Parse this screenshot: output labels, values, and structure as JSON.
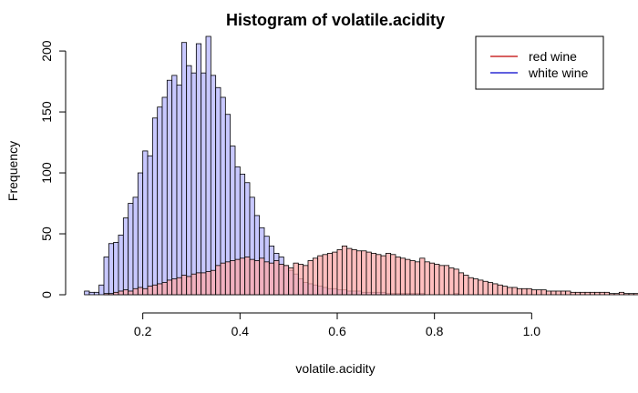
{
  "chart_data": {
    "type": "bar",
    "title": "Histogram of volatile.acidity",
    "xlabel": "volatile.acidity",
    "ylabel": "Frequency",
    "xlim": [
      0.06,
      1.14
    ],
    "ylim": [
      0,
      212
    ],
    "x_ticks": [
      0.2,
      0.4,
      0.6,
      0.8,
      1.0
    ],
    "x_tick_labels": [
      "0.2",
      "0.4",
      "0.6",
      "0.8",
      "1.0"
    ],
    "y_ticks": [
      0,
      50,
      100,
      150,
      200
    ],
    "y_tick_labels": [
      "0",
      "50",
      "100",
      "150",
      "200"
    ],
    "bin_width": 0.01,
    "legend": {
      "position": "top-right",
      "entries": [
        {
          "label": "red wine",
          "color": "#c00000"
        },
        {
          "label": "white wine",
          "color": "#0000cc"
        }
      ]
    },
    "series": [
      {
        "name": "white wine",
        "fill": "#c8c8ff",
        "stroke": "#000000",
        "bin_start": 0.08,
        "values": [
          3,
          2,
          2,
          8,
          31,
          42,
          43,
          49,
          63,
          75,
          80,
          100,
          118,
          114,
          145,
          154,
          162,
          176,
          180,
          172,
          207,
          188,
          182,
          206,
          182,
          212,
          180,
          170,
          162,
          148,
          122,
          105,
          99,
          92,
          80,
          65,
          55,
          48,
          40,
          34,
          31,
          24,
          20,
          17,
          13,
          10,
          9,
          8,
          7,
          6,
          5,
          5,
          4,
          4,
          3,
          3,
          3,
          2,
          2,
          2,
          2,
          2,
          1,
          1,
          1,
          1,
          1,
          1,
          1,
          1,
          0,
          0,
          0,
          0,
          0,
          0,
          1,
          0,
          0,
          0,
          0,
          0,
          0,
          0,
          0,
          0,
          0,
          0,
          0,
          0,
          0,
          0,
          0,
          0,
          0,
          0,
          0,
          0,
          0,
          0,
          0,
          0,
          0,
          0,
          0,
          0
        ]
      },
      {
        "name": "red wine",
        "fill": "rgba(255,170,170,0.75)",
        "stroke": "#000000",
        "bin_start": 0.12,
        "values": [
          1,
          1,
          2,
          3,
          4,
          3,
          5,
          6,
          5,
          7,
          8,
          9,
          10,
          12,
          13,
          14,
          16,
          15,
          17,
          18,
          18,
          19,
          20,
          24,
          26,
          27,
          28,
          29,
          30,
          31,
          29,
          28,
          30,
          27,
          26,
          28,
          25,
          24,
          22,
          26,
          25,
          24,
          28,
          30,
          32,
          33,
          34,
          35,
          37,
          40,
          38,
          37,
          36,
          36,
          35,
          34,
          33,
          32,
          34,
          33,
          31,
          30,
          29,
          28,
          27,
          30,
          27,
          26,
          25,
          24,
          24,
          22,
          21,
          18,
          16,
          14,
          13,
          12,
          11,
          10,
          9,
          8,
          7,
          6,
          6,
          5,
          5,
          5,
          4,
          4,
          4,
          3,
          3,
          3,
          3,
          3,
          2,
          2,
          2,
          2,
          2,
          2,
          2,
          2,
          1,
          1,
          2,
          1,
          1,
          1
        ]
      }
    ]
  }
}
